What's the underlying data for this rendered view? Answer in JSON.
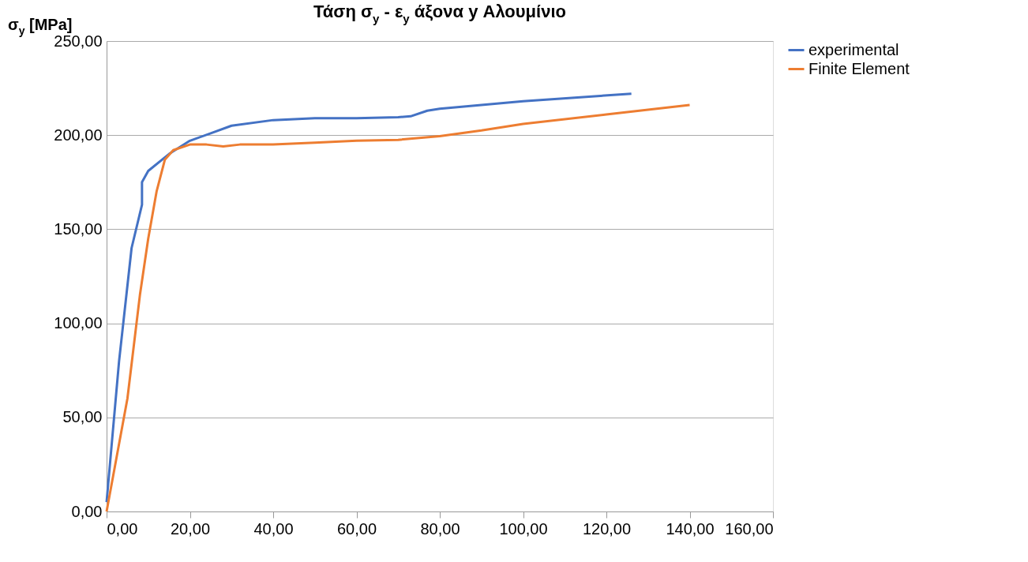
{
  "chart_data": {
    "type": "line",
    "title": "Τάση σ$_{y}$ - ε$_{y}$ άξονα y Αλουμίνιο",
    "ylabel": "σ$_{y}$ [MPa]",
    "xlim": [
      0,
      160
    ],
    "ylim": [
      0,
      250
    ],
    "xticks": [
      {
        "value": 0,
        "label": "0,00"
      },
      {
        "value": 20,
        "label": "20,00"
      },
      {
        "value": 40,
        "label": "40,00"
      },
      {
        "value": 60,
        "label": "60,00"
      },
      {
        "value": 80,
        "label": "80,00"
      },
      {
        "value": 100,
        "label": "100,00"
      },
      {
        "value": 120,
        "label": "120,00"
      },
      {
        "value": 140,
        "label": "140,00"
      },
      {
        "value": 160,
        "label": "160,00"
      }
    ],
    "yticks": [
      {
        "value": 0,
        "label": "0,00"
      },
      {
        "value": 50,
        "label": "50,00"
      },
      {
        "value": 100,
        "label": "100,00"
      },
      {
        "value": 150,
        "label": "150,00"
      },
      {
        "value": 200,
        "label": "200,00"
      },
      {
        "value": 250,
        "label": "250,00"
      }
    ],
    "grid": "y",
    "legend": "right",
    "marker": "none",
    "line_style": "solid",
    "series": [
      {
        "name": "experimental",
        "color": "#4472c4",
        "x": [
          0,
          3,
          6,
          8.5,
          8.5,
          10,
          15,
          20,
          25,
          30,
          40,
          50,
          60,
          70,
          73,
          77,
          80,
          100,
          126
        ],
        "values": [
          5,
          80,
          140,
          163,
          175,
          181,
          190,
          197,
          201,
          205,
          208,
          209,
          209,
          209.5,
          210,
          213,
          214,
          218,
          222
        ]
      },
      {
        "name": "Finite Element",
        "color": "#ed7d31",
        "x": [
          0,
          5,
          8,
          10,
          12,
          14,
          16,
          20,
          24,
          28,
          32,
          40,
          50,
          60,
          70,
          80,
          90,
          100,
          120,
          140
        ],
        "values": [
          0,
          60,
          115,
          145,
          170,
          187,
          192,
          195,
          195,
          194,
          195,
          195,
          196,
          197,
          197.5,
          199.5,
          202.5,
          206,
          211,
          216
        ]
      }
    ]
  }
}
